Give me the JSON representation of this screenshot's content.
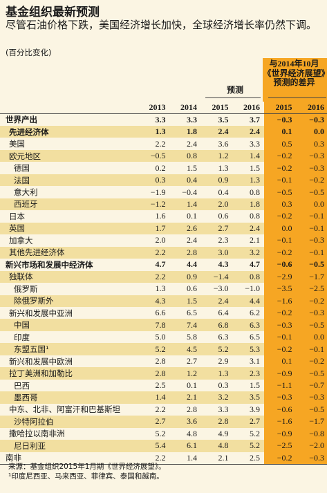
{
  "title": "基金组织最新预测",
  "subtitle": "尽管石油价格下跌，美国经济增长加快，全球经济增长率仍然下调。",
  "unit": "(百分比变化)",
  "header": {
    "forecast": "预测",
    "difference": "与2014年10月《世界经济展望》预测的差异"
  },
  "chart_data": {
    "type": "table",
    "columns": [
      "2013",
      "2014",
      "2015",
      "2016",
      "2015",
      "2016"
    ],
    "rows": [
      {
        "label": "世界产出",
        "values": [
          "3.3",
          "3.3",
          "3.5",
          "3.7",
          "−0.3",
          "−0.3"
        ]
      },
      {
        "label": "先进经济体",
        "values": [
          "1.3",
          "1.8",
          "2.4",
          "2.4",
          "0.1",
          "0.0"
        ]
      },
      {
        "label": "美国",
        "values": [
          "2.2",
          "2.4",
          "3.6",
          "3.3",
          "0.5",
          "0.3"
        ]
      },
      {
        "label": "欧元地区",
        "values": [
          "−0.5",
          "0.8",
          "1.2",
          "1.4",
          "−0.2",
          "−0.3"
        ]
      },
      {
        "label": "德国",
        "values": [
          "0.2",
          "1.5",
          "1.3",
          "1.5",
          "−0.2",
          "−0.3"
        ]
      },
      {
        "label": "法国",
        "values": [
          "0.3",
          "0.4",
          "0.9",
          "1.3",
          "−0.1",
          "−0.2"
        ]
      },
      {
        "label": "意大利",
        "values": [
          "−1.9",
          "−0.4",
          "0.4",
          "0.8",
          "−0.5",
          "−0.5"
        ]
      },
      {
        "label": "西班牙",
        "values": [
          "−1.2",
          "1.4",
          "2.0",
          "1.8",
          "0.3",
          "0.0"
        ]
      },
      {
        "label": "日本",
        "values": [
          "1.6",
          "0.1",
          "0.6",
          "0.8",
          "−0.2",
          "−0.1"
        ]
      },
      {
        "label": "英国",
        "values": [
          "1.7",
          "2.6",
          "2.7",
          "2.4",
          "0.0",
          "−0.1"
        ]
      },
      {
        "label": "加拿大",
        "values": [
          "2.0",
          "2.4",
          "2.3",
          "2.1",
          "−0.1",
          "−0.3"
        ]
      },
      {
        "label": "其他先进经济体",
        "values": [
          "2.2",
          "2.8",
          "3.0",
          "3.2",
          "−0.2",
          "−0.1"
        ]
      },
      {
        "label": "新兴市场和发展中经济体",
        "values": [
          "4.7",
          "4.4",
          "4.3",
          "4.7",
          "−0.6",
          "−0.5"
        ]
      },
      {
        "label": "独联体",
        "values": [
          "2.2",
          "0.9",
          "−1.4",
          "0.8",
          "−2.9",
          "−1.7"
        ]
      },
      {
        "label": "俄罗斯",
        "values": [
          "1.3",
          "0.6",
          "−3.0",
          "−1.0",
          "−3.5",
          "−2.5"
        ]
      },
      {
        "label": "除俄罗斯外",
        "values": [
          "4.3",
          "1.5",
          "2.4",
          "4.4",
          "−1.6",
          "−0.2"
        ]
      },
      {
        "label": "新兴和发展中亚洲",
        "values": [
          "6.6",
          "6.5",
          "6.4",
          "6.2",
          "−0.2",
          "−0.3"
        ]
      },
      {
        "label": "中国",
        "values": [
          "7.8",
          "7.4",
          "6.8",
          "6.3",
          "−0.3",
          "−0.5"
        ]
      },
      {
        "label": "印度",
        "values": [
          "5.0",
          "5.8",
          "6.3",
          "6.5",
          "−0.1",
          "0.0"
        ]
      },
      {
        "label": "东盟五国¹",
        "values": [
          "5.2",
          "4.5",
          "5.2",
          "5.3",
          "−0.2",
          "−0.1"
        ]
      },
      {
        "label": "新兴和发展中欧洲",
        "values": [
          "2.8",
          "2.7",
          "2.9",
          "3.1",
          "0.1",
          "−0.2"
        ]
      },
      {
        "label": "拉丁美洲和加勒比",
        "values": [
          "2.8",
          "1.2",
          "1.3",
          "2.3",
          "−0.9",
          "−0.5"
        ]
      },
      {
        "label": "巴西",
        "values": [
          "2.5",
          "0.1",
          "0.3",
          "1.5",
          "−1.1",
          "−0.7"
        ]
      },
      {
        "label": "墨西哥",
        "values": [
          "1.4",
          "2.1",
          "3.2",
          "3.5",
          "−0.3",
          "−0.3"
        ]
      },
      {
        "label": "中东、北非、阿富汗和巴基斯坦",
        "values": [
          "2.2",
          "2.8",
          "3.3",
          "3.9",
          "−0.6",
          "−0.5"
        ]
      },
      {
        "label": "沙特阿拉伯",
        "values": [
          "2.7",
          "3.6",
          "2.8",
          "2.7",
          "−1.6",
          "−1.7"
        ]
      },
      {
        "label": "撒哈拉以南非洲",
        "values": [
          "5.2",
          "4.8",
          "4.9",
          "5.2",
          "−0.9",
          "−0.8"
        ]
      },
      {
        "label": "尼日利亚",
        "values": [
          "5.4",
          "6.1",
          "4.8",
          "5.2",
          "−2.5",
          "−2.0"
        ]
      },
      {
        "label": "南非",
        "values": [
          "2.2",
          "1.4",
          "2.1",
          "2.5",
          "−0.2",
          "−0.3"
        ]
      }
    ]
  },
  "notes": {
    "source": "来源：基金组织2015年1月期《世界经济展望》。",
    "footnote": "¹印度尼西亚、马来西亚、菲律宾、泰国和越南。"
  },
  "colors": {
    "background": "#fbf5e3",
    "shade": "#f2dfa0",
    "accent": "#f6a623"
  }
}
